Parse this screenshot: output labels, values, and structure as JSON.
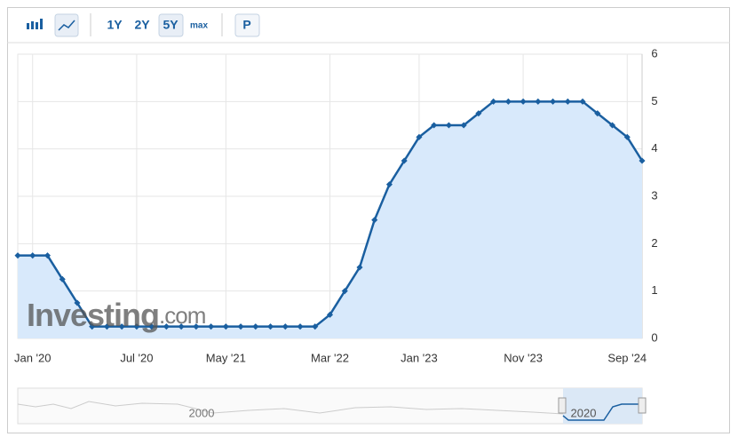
{
  "toolbar": {
    "ranges": [
      "1Y",
      "2Y",
      "5Y",
      "max"
    ],
    "button": "P"
  },
  "watermark": {
    "brand": "Investing",
    "suffix": ".com"
  },
  "navigator": {
    "labels": [
      "2000",
      "2020"
    ]
  },
  "chart_data": {
    "type": "line",
    "categories": [
      null,
      "Jan '20",
      null,
      null,
      null,
      null,
      null,
      null,
      "Jul '20",
      null,
      null,
      null,
      null,
      null,
      "May '21",
      null,
      null,
      null,
      null,
      null,
      null,
      "Mar '22",
      null,
      null,
      null,
      null,
      null,
      "Jan '23",
      null,
      null,
      null,
      null,
      null,
      null,
      "Nov '23",
      null,
      null,
      null,
      null,
      null,
      null,
      "Sep '24",
      null
    ],
    "series": [
      {
        "color": "#1a5fa0",
        "values": [
          1.75,
          1.75,
          1.75,
          1.25,
          0.75,
          0.25,
          0.25,
          0.25,
          0.25,
          0.25,
          0.25,
          0.25,
          0.25,
          0.25,
          0.25,
          0.25,
          0.25,
          0.25,
          0.25,
          0.25,
          0.25,
          0.5,
          1.0,
          1.5,
          2.5,
          3.25,
          3.75,
          4.25,
          4.5,
          4.5,
          4.5,
          4.75,
          5,
          5,
          5,
          5,
          5,
          5,
          5,
          4.75,
          4.5,
          4.25,
          3.75
        ]
      }
    ],
    "area_color": "#d8e9fb",
    "ylim": [
      0,
      6
    ],
    "yticks": [
      0,
      1,
      2,
      3,
      4,
      5,
      6
    ],
    "grid": true
  }
}
